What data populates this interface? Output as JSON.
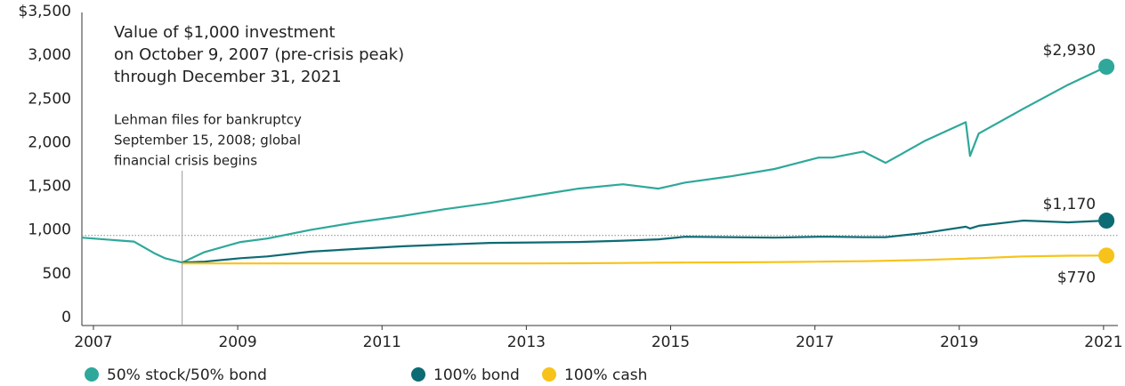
{
  "chart_data": {
    "type": "line",
    "title": [
      "Value of $1,000 investment",
      "on October 9, 2007 (pre-crisis peak)",
      "through December 31, 2021"
    ],
    "annotation": {
      "text": [
        "Lehman files for bankruptcy",
        "September 15, 2008; global",
        "financial crisis begins"
      ],
      "x": 2008.23
    },
    "reference_line": 1000,
    "x": [
      2006.84,
      2007.31,
      2007.56,
      2007.86,
      2007.99,
      2008.23,
      2008.54,
      2009.04,
      2009.41,
      2010.02,
      2010.64,
      2011.26,
      2011.87,
      2012.49,
      2013.11,
      2013.72,
      2014.34,
      2014.83,
      2015.2,
      2015.82,
      2016.44,
      2017.05,
      2017.24,
      2017.67,
      2017.98,
      2018.53,
      2019.09,
      2019.15,
      2019.27,
      2019.89,
      2020.51,
      2021.04
    ],
    "series": [
      {
        "name": "50% stock/50% bond",
        "color": "#2ea89a",
        "values": [
          975,
          945,
          930,
          790,
          740,
          690,
          810,
          925,
          965,
          1065,
          1150,
          1220,
          1300,
          1370,
          1455,
          1535,
          1585,
          1535,
          1605,
          1675,
          1760,
          1890,
          1890,
          1960,
          1830,
          2085,
          2295,
          1910,
          2165,
          2450,
          2725,
          2930
        ],
        "value_labels": [
          null,
          null,
          null,
          null,
          null,
          null,
          null,
          null,
          null,
          null,
          null,
          null,
          null,
          null,
          null,
          null,
          null,
          null,
          null,
          null,
          null,
          null,
          null,
          null,
          null,
          null,
          null,
          null,
          null,
          null,
          null,
          "$2,930"
        ]
      },
      {
        "name": "100% bond",
        "color": "#0d6b73",
        "values": [
          null,
          null,
          null,
          null,
          null,
          690,
          700,
          740,
          760,
          815,
          845,
          875,
          895,
          915,
          920,
          925,
          940,
          955,
          985,
          980,
          975,
          985,
          985,
          980,
          980,
          1030,
          1100,
          1080,
          1110,
          1170,
          1150,
          1170
        ],
        "value_labels": [
          null,
          null,
          null,
          null,
          null,
          null,
          null,
          null,
          null,
          null,
          null,
          null,
          null,
          null,
          null,
          null,
          null,
          null,
          null,
          null,
          null,
          null,
          null,
          null,
          null,
          null,
          null,
          null,
          null,
          null,
          null,
          "$1,170"
        ]
      },
      {
        "name": "100% cash",
        "color": "#f7c31a",
        "values": [
          null,
          null,
          null,
          null,
          null,
          680,
          680,
          680,
          680,
          680,
          680,
          680,
          680,
          680,
          680,
          682,
          685,
          688,
          690,
          692,
          695,
          700,
          702,
          705,
          710,
          720,
          735,
          738,
          740,
          760,
          768,
          770
        ],
        "value_labels": [
          null,
          null,
          null,
          null,
          null,
          null,
          null,
          null,
          null,
          null,
          null,
          null,
          null,
          null,
          null,
          null,
          null,
          null,
          null,
          null,
          null,
          null,
          null,
          null,
          null,
          null,
          null,
          null,
          null,
          null,
          null,
          "$770"
        ]
      }
    ],
    "xlim": [
      2006.84,
      2021.1
    ],
    "xticks": [
      2007,
      2009,
      2011,
      2013,
      2015,
      2017,
      2019,
      2021
    ],
    "ylim": [
      0,
      3500
    ],
    "yticks": [
      0,
      500,
      {
        "value": 1000,
        "label": "1,000"
      },
      {
        "value": 1500,
        "label": "1,500"
      },
      {
        "value": 2000,
        "label": "2,000"
      },
      {
        "value": 2500,
        "label": "2,500"
      },
      {
        "value": 3000,
        "label": "3,000"
      },
      {
        "value": 3500,
        "label": "$3,500"
      }
    ]
  }
}
